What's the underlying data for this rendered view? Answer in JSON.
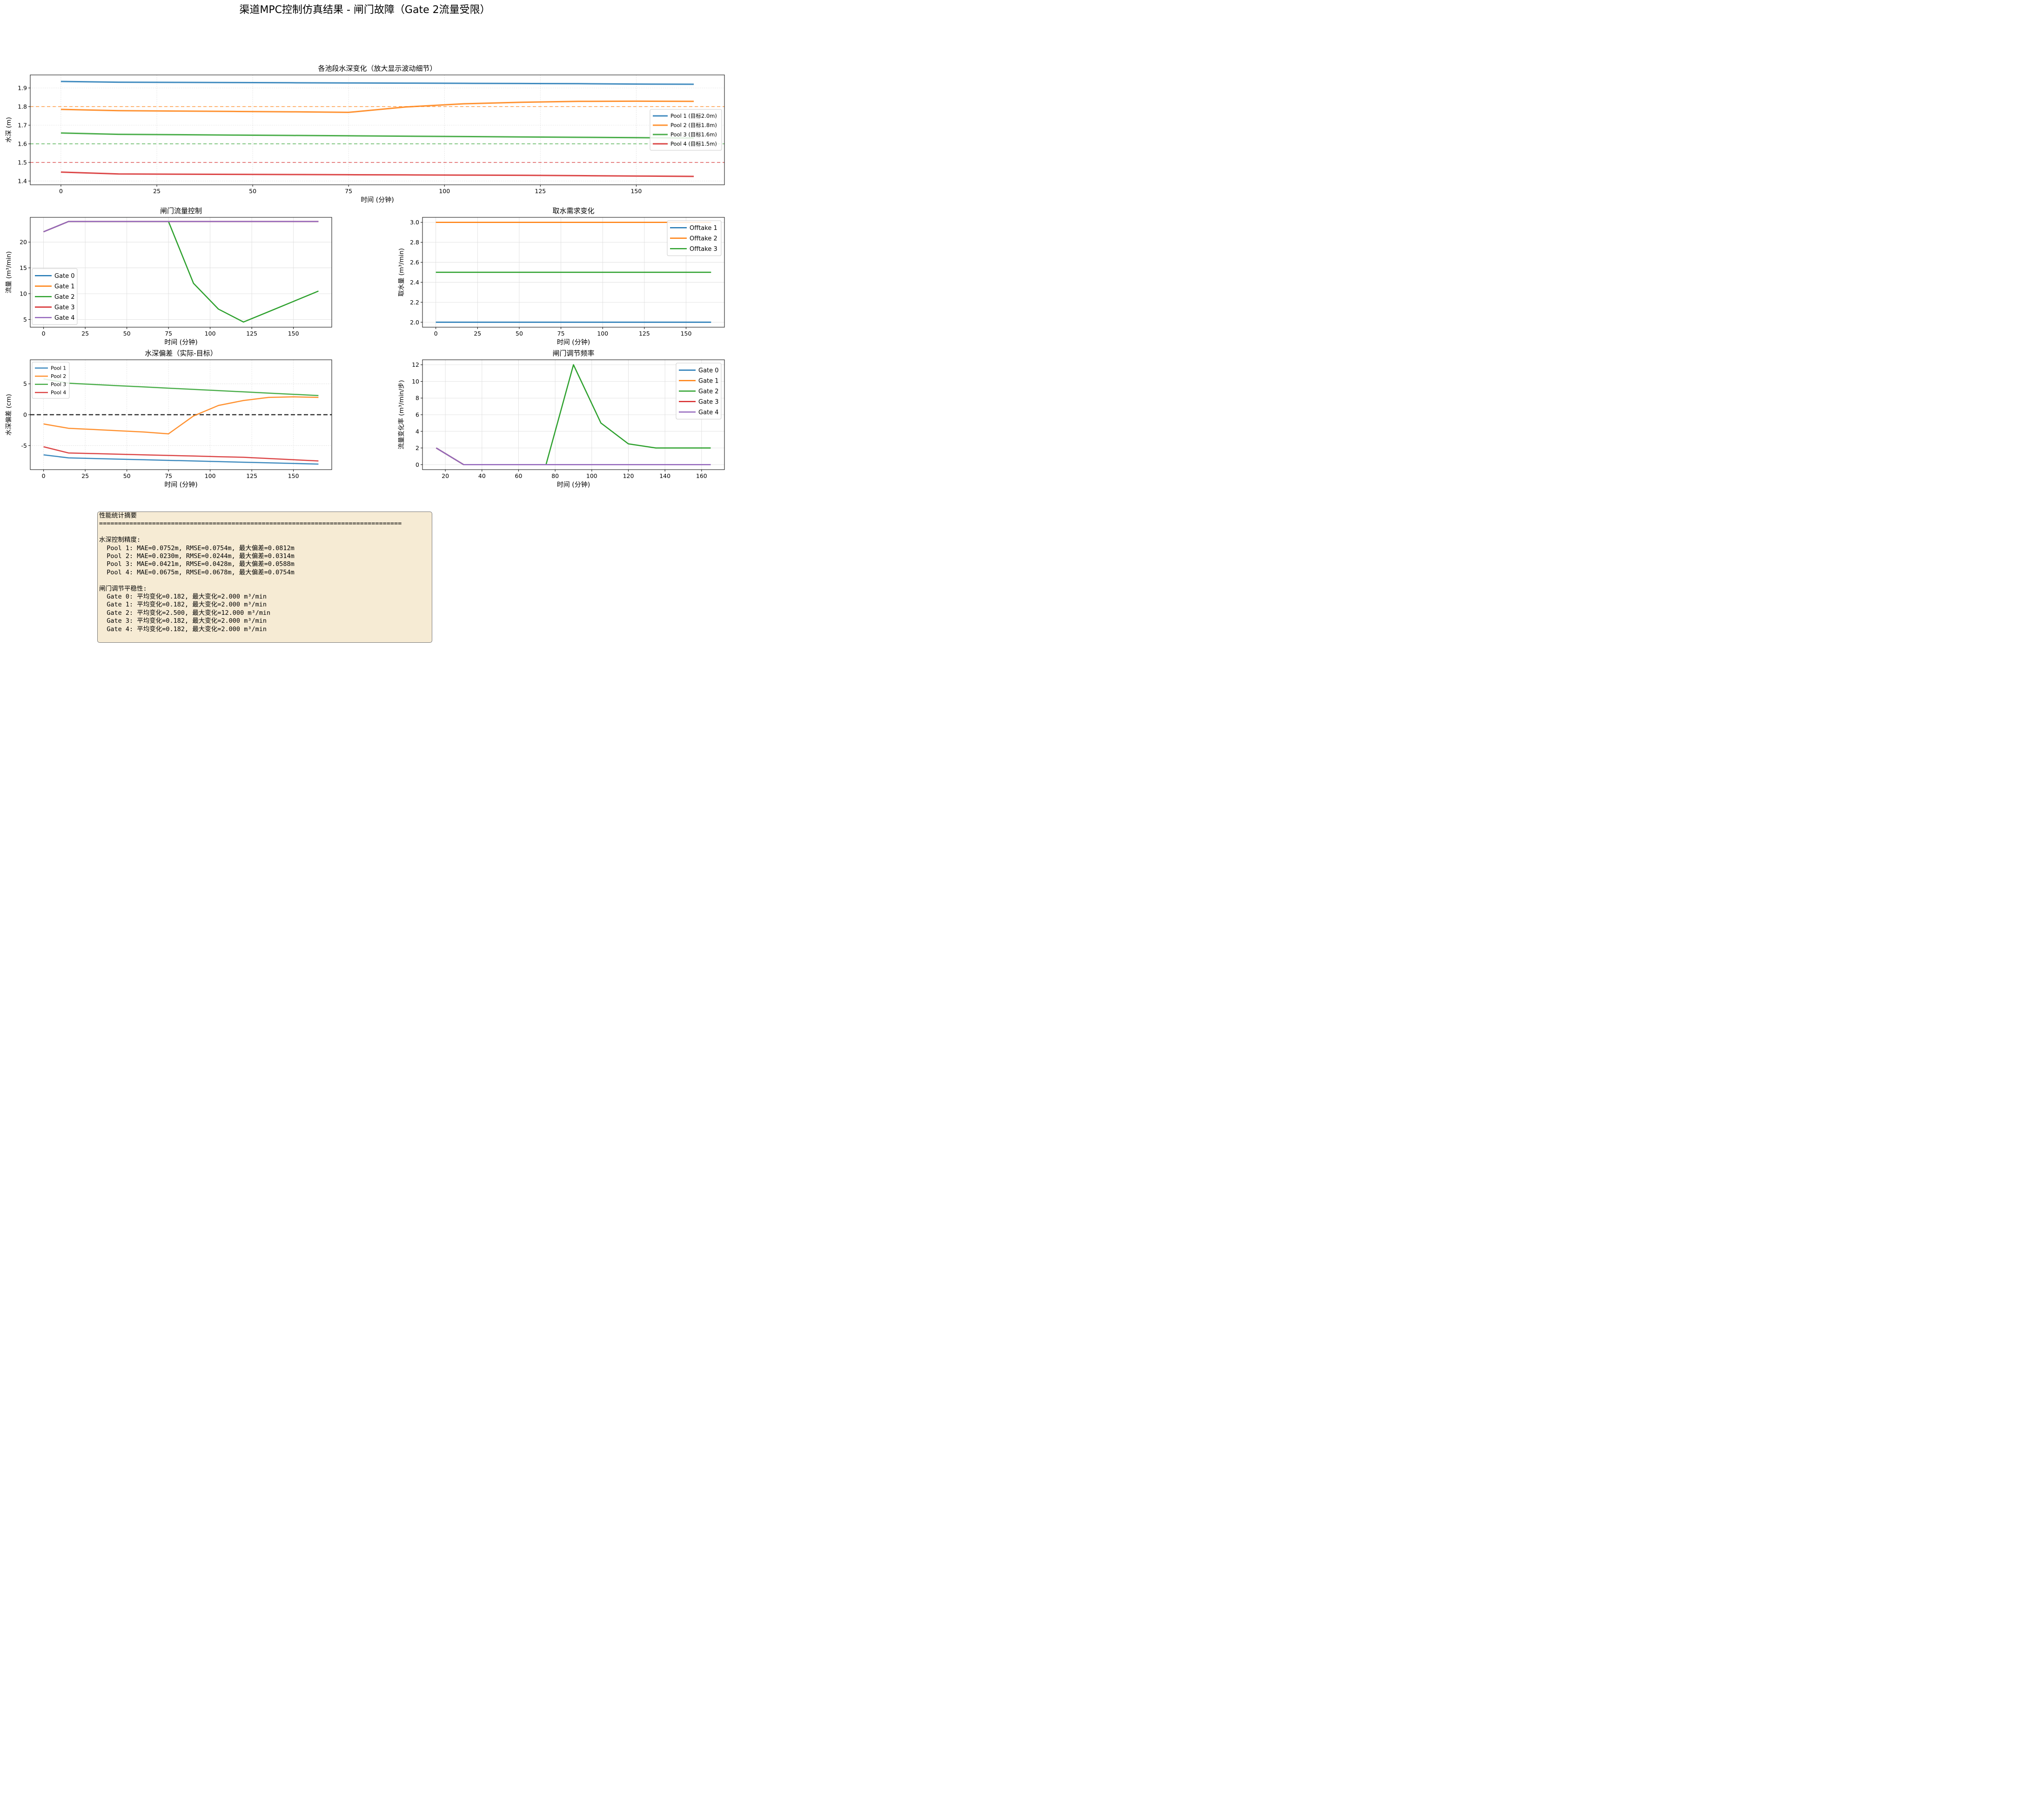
{
  "figure": {
    "suptitle": "渠道MPC控制仿真结果 - 闸门故障（Gate 2流量受限）"
  },
  "colors": {
    "c0": "#1f77b4",
    "c1": "#ff7f0e",
    "c2": "#2ca02c",
    "c3": "#d62728",
    "c4": "#9467bd"
  },
  "chart_data": [
    {
      "id": "depth",
      "type": "line",
      "title": "各池段水深变化（放大显示波动细节）",
      "xlabel": "时间 (分钟)",
      "ylabel": "水深 (m)",
      "xlim": [
        -8,
        173
      ],
      "ylim": [
        1.38,
        1.97
      ],
      "xticks": [
        0,
        25,
        50,
        75,
        100,
        125,
        150
      ],
      "yticks": [
        1.4,
        1.5,
        1.6,
        1.7,
        1.8,
        1.9
      ],
      "ytick_decimals": 1,
      "grid": true,
      "legend": "right",
      "x": [
        0,
        15,
        30,
        45,
        60,
        75,
        90,
        105,
        120,
        135,
        150,
        165
      ],
      "reference_lines": [
        {
          "y": 1.8,
          "color": "#ff7f0e"
        },
        {
          "y": 1.6,
          "color": "#2ca02c"
        },
        {
          "y": 1.5,
          "color": "#d62728"
        }
      ],
      "series": [
        {
          "name": "Pool 1 (目标2.0m)",
          "color": "#1f77b4",
          "values": [
            1.935,
            1.931,
            1.93,
            1.929,
            1.928,
            1.927,
            1.926,
            1.925,
            1.924,
            1.923,
            1.921,
            1.92
          ]
        },
        {
          "name": "Pool 2 (目标1.8m)",
          "color": "#ff7f0e",
          "values": [
            1.785,
            1.778,
            1.776,
            1.774,
            1.772,
            1.769,
            1.798,
            1.815,
            1.823,
            1.828,
            1.829,
            1.828
          ]
        },
        {
          "name": "Pool 3 (目标1.6m)",
          "color": "#2ca02c",
          "values": [
            1.658,
            1.651,
            1.649,
            1.647,
            1.645,
            1.643,
            1.641,
            1.639,
            1.637,
            1.635,
            1.633,
            1.631
          ]
        },
        {
          "name": "Pool 4 (目标1.5m)",
          "color": "#d62728",
          "values": [
            1.448,
            1.438,
            1.437,
            1.436,
            1.435,
            1.434,
            1.433,
            1.432,
            1.431,
            1.429,
            1.427,
            1.425
          ]
        }
      ]
    },
    {
      "id": "gate-flow",
      "type": "line",
      "title": "闸门流量控制",
      "xlabel": "时间 (分钟)",
      "ylabel": "流量 (m³/min)",
      "xlim": [
        -8,
        173
      ],
      "ylim": [
        3.5,
        24.8
      ],
      "xticks": [
        0,
        25,
        50,
        75,
        100,
        125,
        150
      ],
      "yticks": [
        5,
        10,
        15,
        20
      ],
      "ytick_decimals": 0,
      "grid": true,
      "legend": "lower left",
      "x": [
        0,
        15,
        30,
        45,
        60,
        75,
        90,
        105,
        120,
        135,
        150,
        165
      ],
      "series": [
        {
          "name": "Gate 0",
          "color": "#1f77b4",
          "values": [
            22,
            24,
            24,
            24,
            24,
            24,
            24,
            24,
            24,
            24,
            24,
            24
          ]
        },
        {
          "name": "Gate 1",
          "color": "#ff7f0e",
          "values": [
            22,
            24,
            24,
            24,
            24,
            24,
            24,
            24,
            24,
            24,
            24,
            24
          ]
        },
        {
          "name": "Gate 2",
          "color": "#2ca02c",
          "values": [
            22,
            24,
            24,
            24,
            24,
            24,
            12,
            7,
            4.5,
            6.5,
            8.5,
            10.5
          ]
        },
        {
          "name": "Gate 3",
          "color": "#d62728",
          "values": [
            22,
            24,
            24,
            24,
            24,
            24,
            24,
            24,
            24,
            24,
            24,
            24
          ]
        },
        {
          "name": "Gate 4",
          "color": "#9467bd",
          "values": [
            22,
            24,
            24,
            24,
            24,
            24,
            24,
            24,
            24,
            24,
            24,
            24
          ]
        }
      ]
    },
    {
      "id": "offtake",
      "type": "line",
      "title": "取水需求变化",
      "xlabel": "时间 (分钟)",
      "ylabel": "取水量 (m³/min)",
      "xlim": [
        -8,
        173
      ],
      "ylim": [
        1.95,
        3.05
      ],
      "xticks": [
        0,
        25,
        50,
        75,
        100,
        125,
        150
      ],
      "yticks": [
        2.0,
        2.2,
        2.4,
        2.6,
        2.8,
        3.0
      ],
      "ytick_decimals": 1,
      "grid": true,
      "legend": "upper right",
      "x": [
        0,
        15,
        30,
        45,
        60,
        75,
        90,
        105,
        120,
        135,
        150,
        165
      ],
      "series": [
        {
          "name": "Offtake 1",
          "color": "#1f77b4",
          "values": [
            2.0,
            2.0,
            2.0,
            2.0,
            2.0,
            2.0,
            2.0,
            2.0,
            2.0,
            2.0,
            2.0,
            2.0
          ]
        },
        {
          "name": "Offtake 2",
          "color": "#ff7f0e",
          "values": [
            3.0,
            3.0,
            3.0,
            3.0,
            3.0,
            3.0,
            3.0,
            3.0,
            3.0,
            3.0,
            3.0,
            3.0
          ]
        },
        {
          "name": "Offtake 3",
          "color": "#2ca02c",
          "values": [
            2.5,
            2.5,
            2.5,
            2.5,
            2.5,
            2.5,
            2.5,
            2.5,
            2.5,
            2.5,
            2.5,
            2.5
          ]
        }
      ]
    },
    {
      "id": "deviation",
      "type": "line",
      "title": "水深偏差（实际-目标）",
      "xlabel": "时间 (分钟)",
      "ylabel": "水深偏差 (cm)",
      "xlim": [
        -8,
        173
      ],
      "ylim": [
        -8.9,
        8.9
      ],
      "xticks": [
        0,
        25,
        50,
        75,
        100,
        125,
        150
      ],
      "yticks": [
        -5,
        0,
        5
      ],
      "ytick_decimals": 0,
      "grid": true,
      "legend": "upper left",
      "zero_line": true,
      "x": [
        0,
        15,
        30,
        45,
        60,
        75,
        90,
        105,
        120,
        135,
        150,
        165
      ],
      "series": [
        {
          "name": "Pool 1",
          "color": "#1f77b4",
          "values": [
            -6.5,
            -7.0,
            -7.1,
            -7.2,
            -7.3,
            -7.4,
            -7.5,
            -7.6,
            -7.7,
            -7.8,
            -7.9,
            -8.0
          ]
        },
        {
          "name": "Pool 2",
          "color": "#ff7f0e",
          "values": [
            -1.5,
            -2.2,
            -2.4,
            -2.6,
            -2.8,
            -3.1,
            -0.2,
            1.5,
            2.3,
            2.8,
            2.9,
            2.8
          ]
        },
        {
          "name": "Pool 3",
          "color": "#2ca02c",
          "values": [
            5.8,
            5.1,
            4.9,
            4.7,
            4.5,
            4.3,
            4.1,
            3.9,
            3.7,
            3.5,
            3.3,
            3.1
          ]
        },
        {
          "name": "Pool 4",
          "color": "#d62728",
          "values": [
            -5.2,
            -6.2,
            -6.3,
            -6.4,
            -6.5,
            -6.6,
            -6.7,
            -6.8,
            -6.9,
            -7.1,
            -7.3,
            -7.5
          ]
        }
      ]
    },
    {
      "id": "gate-rate",
      "type": "line",
      "title": "闸门调节频率",
      "xlabel": "时间 (分钟)",
      "ylabel": "流量变化率 (m³/min/步)",
      "xlim": [
        7.5,
        172.5
      ],
      "ylim": [
        -0.6,
        12.6
      ],
      "xticks": [
        20,
        40,
        60,
        80,
        100,
        120,
        140,
        160
      ],
      "yticks": [
        0,
        2,
        4,
        6,
        8,
        10,
        12
      ],
      "ytick_decimals": 0,
      "grid": true,
      "legend": "upper right",
      "x": [
        15,
        30,
        45,
        60,
        75,
        90,
        105,
        120,
        135,
        150,
        165
      ],
      "series": [
        {
          "name": "Gate 0",
          "color": "#1f77b4",
          "values": [
            2,
            0,
            0,
            0,
            0,
            0,
            0,
            0,
            0,
            0,
            0
          ]
        },
        {
          "name": "Gate 1",
          "color": "#ff7f0e",
          "values": [
            2,
            0,
            0,
            0,
            0,
            0,
            0,
            0,
            0,
            0,
            0
          ]
        },
        {
          "name": "Gate 2",
          "color": "#2ca02c",
          "values": [
            2,
            0,
            0,
            0,
            0,
            12,
            5,
            2.5,
            2,
            2,
            2
          ]
        },
        {
          "name": "Gate 3",
          "color": "#d62728",
          "values": [
            2,
            0,
            0,
            0,
            0,
            0,
            0,
            0,
            0,
            0,
            0
          ]
        },
        {
          "name": "Gate 4",
          "color": "#9467bd",
          "values": [
            2,
            0,
            0,
            0,
            0,
            0,
            0,
            0,
            0,
            0,
            0
          ]
        }
      ]
    }
  ],
  "stats": {
    "lines": [
      "性能统计摘要",
      "================================================================================",
      "",
      "水深控制精度:",
      "  Pool 1: MAE=0.0752m, RMSE=0.0754m, 最大偏差=0.0812m",
      "  Pool 2: MAE=0.0230m, RMSE=0.0244m, 最大偏差=0.0314m",
      "  Pool 3: MAE=0.0421m, RMSE=0.0428m, 最大偏差=0.0588m",
      "  Pool 4: MAE=0.0675m, RMSE=0.0678m, 最大偏差=0.0754m",
      "",
      "闸门调节平稳性:",
      "  Gate 0: 平均变化=0.182, 最大变化=2.000 m³/min",
      "  Gate 1: 平均变化=0.182, 最大变化=2.000 m³/min",
      "  Gate 2: 平均变化=2.500, 最大变化=12.000 m³/min",
      "  Gate 3: 平均变化=0.182, 最大变化=2.000 m³/min",
      "  Gate 4: 平均变化=0.182, 最大变化=2.000 m³/min"
    ]
  }
}
